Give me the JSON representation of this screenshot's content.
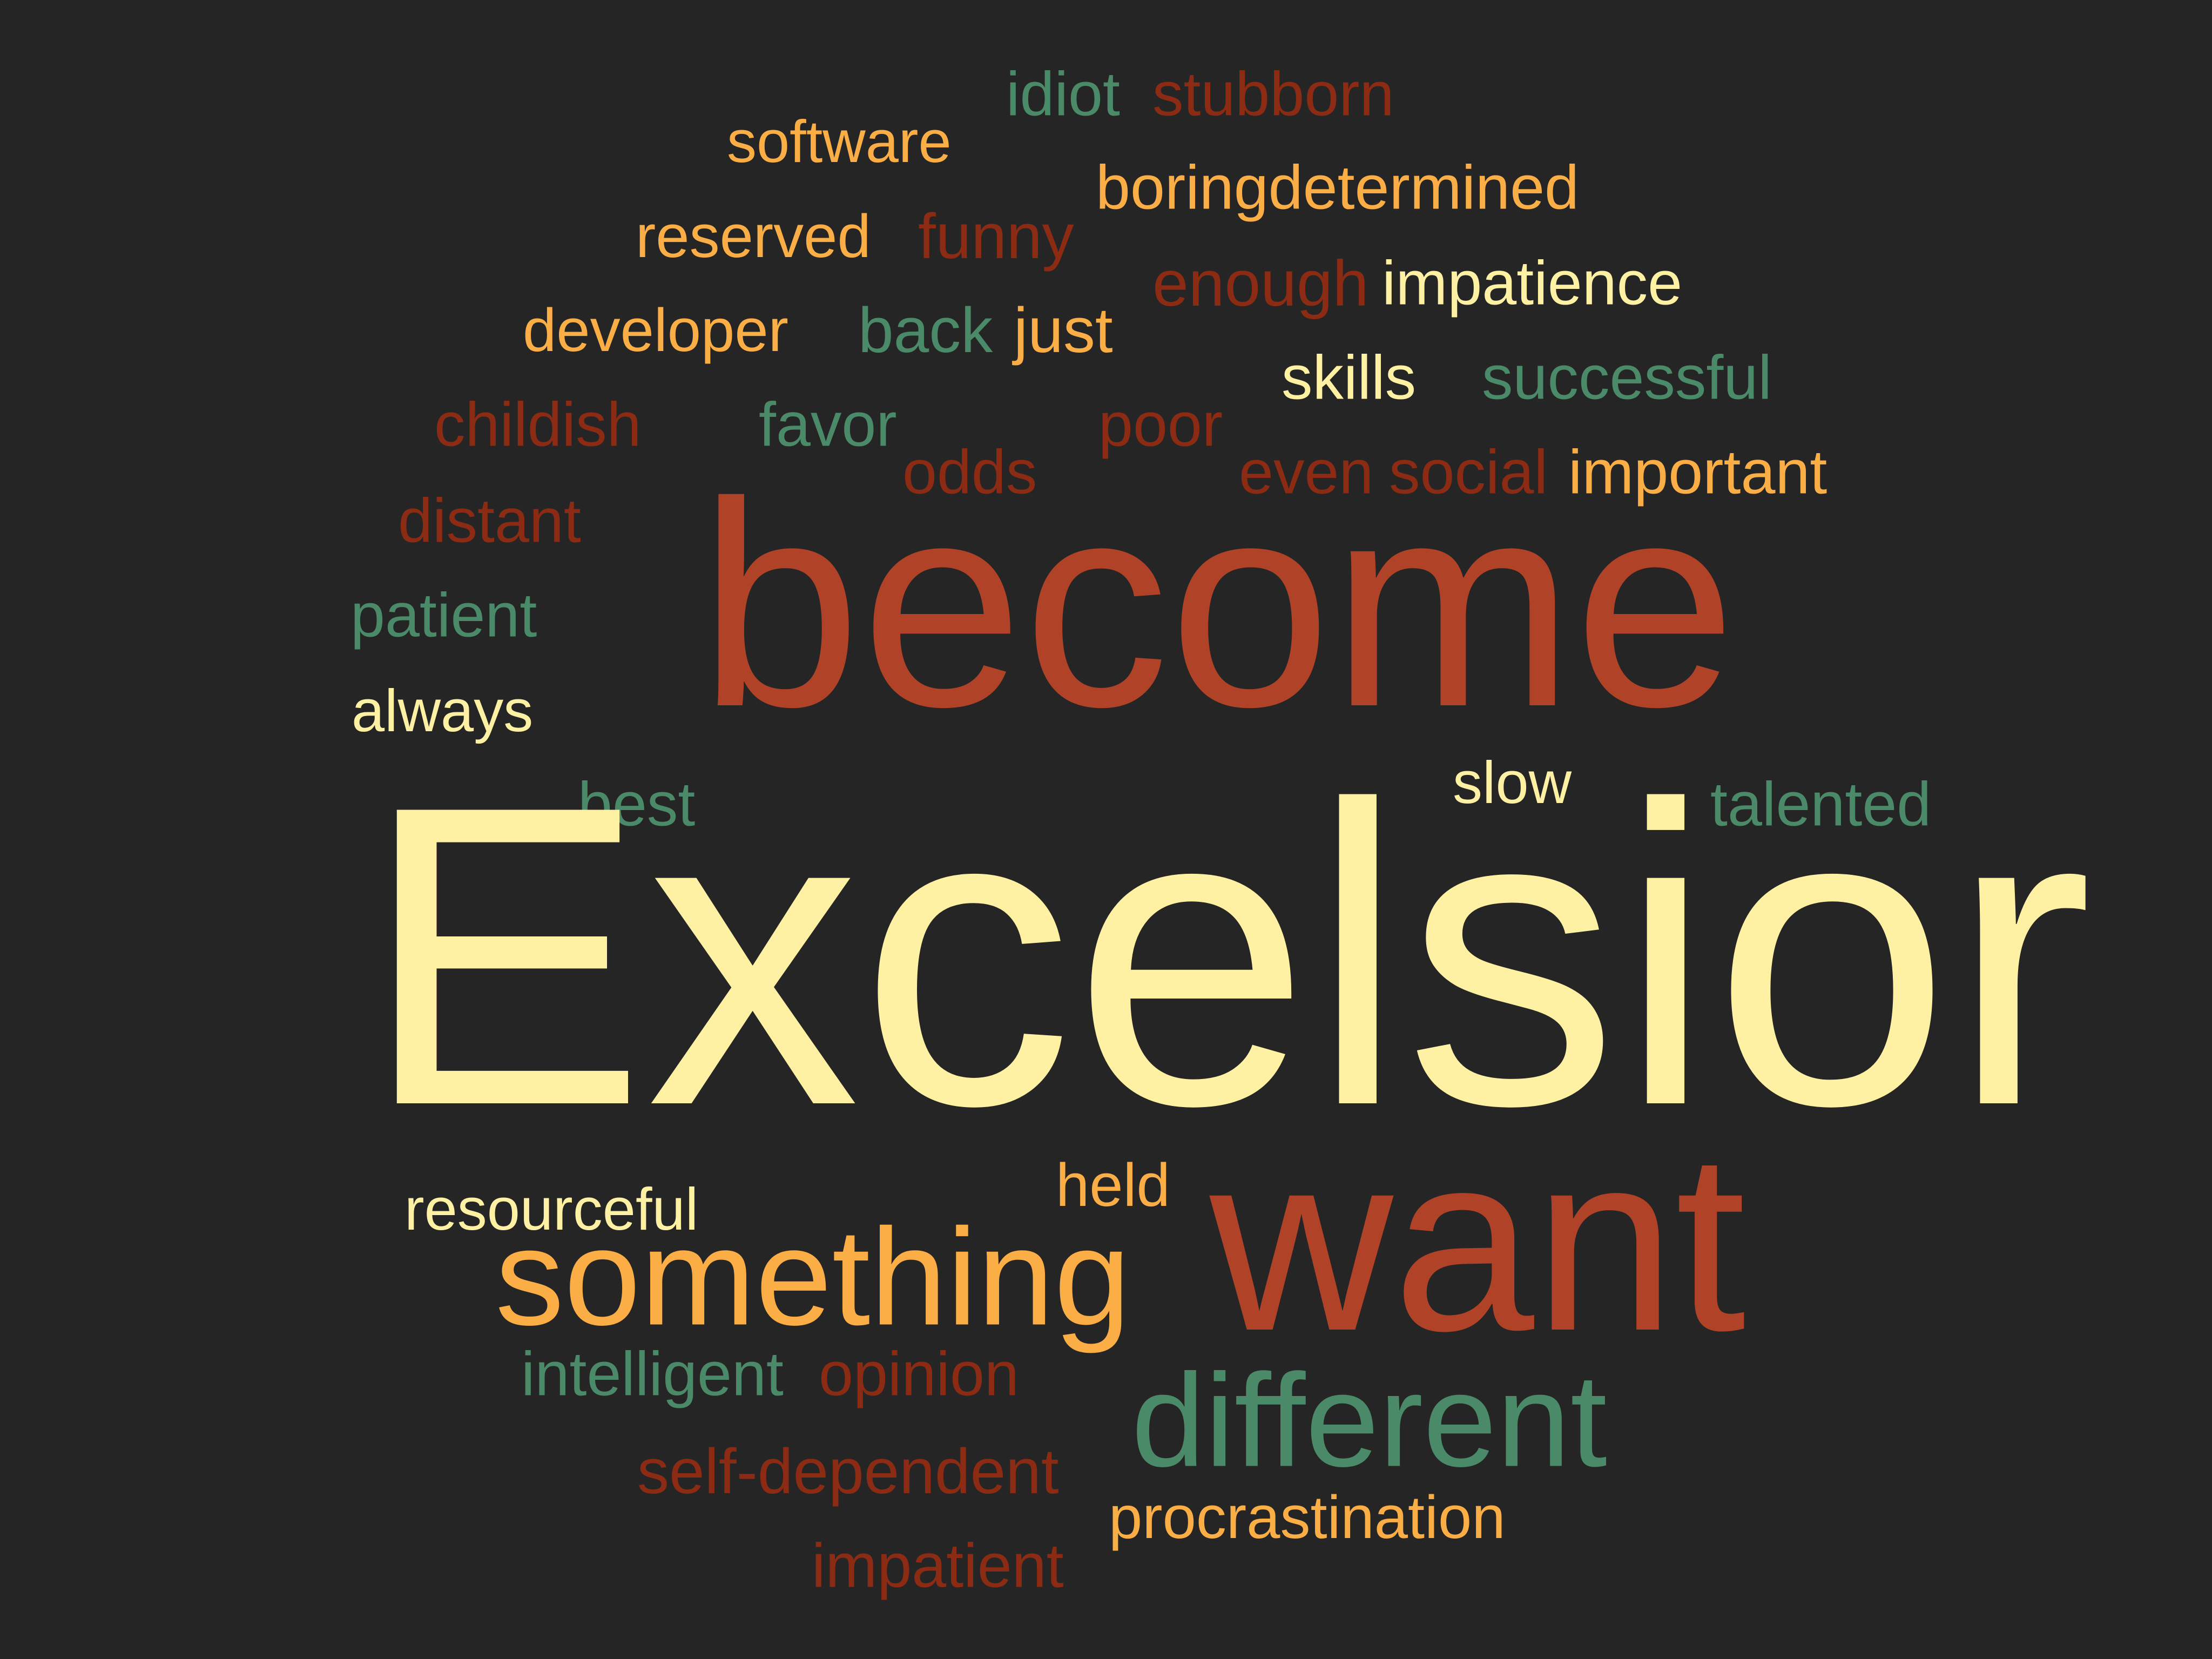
{
  "colors": {
    "background": "#252525",
    "cream": "#FFF1A4",
    "orange": "#FBAE45",
    "rust": "#B04327",
    "dark_rust": "#8B2B14",
    "green": "#4B8A68"
  },
  "words": [
    {
      "id": "idiot",
      "text": "idiot",
      "color": "green"
    },
    {
      "id": "stubborn",
      "text": "stubborn",
      "color": "dark_rust"
    },
    {
      "id": "software",
      "text": "software",
      "color": "orange"
    },
    {
      "id": "boringdetermined",
      "text": "boringdetermined",
      "color": "orange"
    },
    {
      "id": "reserved",
      "text": "reserved",
      "color": "orange"
    },
    {
      "id": "funny",
      "text": "funny",
      "color": "dark_rust"
    },
    {
      "id": "enough",
      "text": "enough",
      "color": "dark_rust"
    },
    {
      "id": "impatience",
      "text": "impatience",
      "color": "cream"
    },
    {
      "id": "developer",
      "text": "developer",
      "color": "orange"
    },
    {
      "id": "back",
      "text": "back",
      "color": "green"
    },
    {
      "id": "just",
      "text": "just",
      "color": "orange"
    },
    {
      "id": "skills",
      "text": "skills",
      "color": "cream"
    },
    {
      "id": "successful",
      "text": "successful",
      "color": "green"
    },
    {
      "id": "childish",
      "text": "childish",
      "color": "dark_rust"
    },
    {
      "id": "favor",
      "text": "favor",
      "color": "green"
    },
    {
      "id": "poor",
      "text": "poor",
      "color": "dark_rust"
    },
    {
      "id": "odds",
      "text": "odds",
      "color": "dark_rust"
    },
    {
      "id": "even",
      "text": "even",
      "color": "dark_rust"
    },
    {
      "id": "social",
      "text": "social",
      "color": "dark_rust"
    },
    {
      "id": "important",
      "text": "important",
      "color": "orange"
    },
    {
      "id": "distant",
      "text": "distant",
      "color": "dark_rust"
    },
    {
      "id": "become",
      "text": "become",
      "color": "rust"
    },
    {
      "id": "patient",
      "text": "patient",
      "color": "green"
    },
    {
      "id": "always",
      "text": "always",
      "color": "cream"
    },
    {
      "id": "best",
      "text": "best",
      "color": "green"
    },
    {
      "id": "slow",
      "text": "slow",
      "color": "cream"
    },
    {
      "id": "talented",
      "text": "talented",
      "color": "green"
    },
    {
      "id": "excelsior",
      "text": "Excelsior",
      "color": "cream"
    },
    {
      "id": "held",
      "text": "held",
      "color": "orange"
    },
    {
      "id": "resourceful",
      "text": "resourceful",
      "color": "cream"
    },
    {
      "id": "want",
      "text": "want",
      "color": "rust"
    },
    {
      "id": "something",
      "text": "something",
      "color": "orange"
    },
    {
      "id": "intelligent",
      "text": "intelligent",
      "color": "green"
    },
    {
      "id": "opinion",
      "text": "opinion",
      "color": "dark_rust"
    },
    {
      "id": "different",
      "text": "different",
      "color": "green"
    },
    {
      "id": "self-dependent",
      "text": "self-dependent",
      "color": "dark_rust"
    },
    {
      "id": "procrastination",
      "text": "procrastination",
      "color": "orange"
    },
    {
      "id": "impatient",
      "text": "impatient",
      "color": "dark_rust"
    }
  ]
}
